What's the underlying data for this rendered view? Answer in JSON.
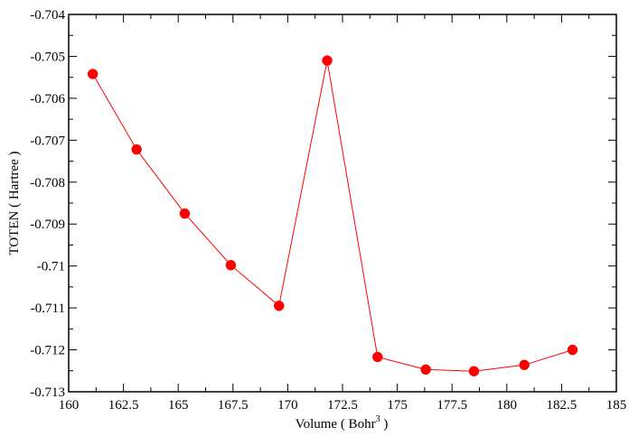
{
  "chart_data": {
    "type": "line",
    "xlabel": "Volume ( Bohr",
    "xlabel_superscript": "3",
    "xlabel_suffix": " )",
    "ylabel": "TOTEN ( Hartree )",
    "xlim": [
      160,
      185
    ],
    "ylim": [
      -0.713,
      -0.704
    ],
    "x_ticks": [
      160,
      162.5,
      165,
      167.5,
      170,
      172.5,
      175,
      177.5,
      180,
      182.5,
      185
    ],
    "x_tick_labels": [
      "160",
      "162.5",
      "165",
      "167.5",
      "170",
      "172.5",
      "175",
      "177.5",
      "180",
      "182.5",
      "185"
    ],
    "y_ticks": [
      -0.704,
      -0.705,
      -0.706,
      -0.707,
      -0.708,
      -0.709,
      -0.71,
      -0.711,
      -0.712,
      -0.713
    ],
    "y_tick_labels": [
      "-0.704",
      "-0.705",
      "-0.706",
      "-0.707",
      "-0.708",
      "-0.709",
      "-0.71",
      "-0.711",
      "-0.712",
      "-0.713"
    ],
    "grid": false,
    "series": [
      {
        "color": "#ff0000",
        "marker": "circle",
        "x": [
          161.1,
          163.1,
          165.3,
          167.4,
          169.6,
          171.8,
          174.1,
          176.3,
          178.5,
          180.8,
          183.0
        ],
        "y": [
          -0.70542,
          -0.70722,
          -0.70875,
          -0.70998,
          -0.71095,
          -0.7051,
          -0.71217,
          -0.71247,
          -0.71251,
          -0.71236,
          -0.712
        ]
      }
    ]
  }
}
